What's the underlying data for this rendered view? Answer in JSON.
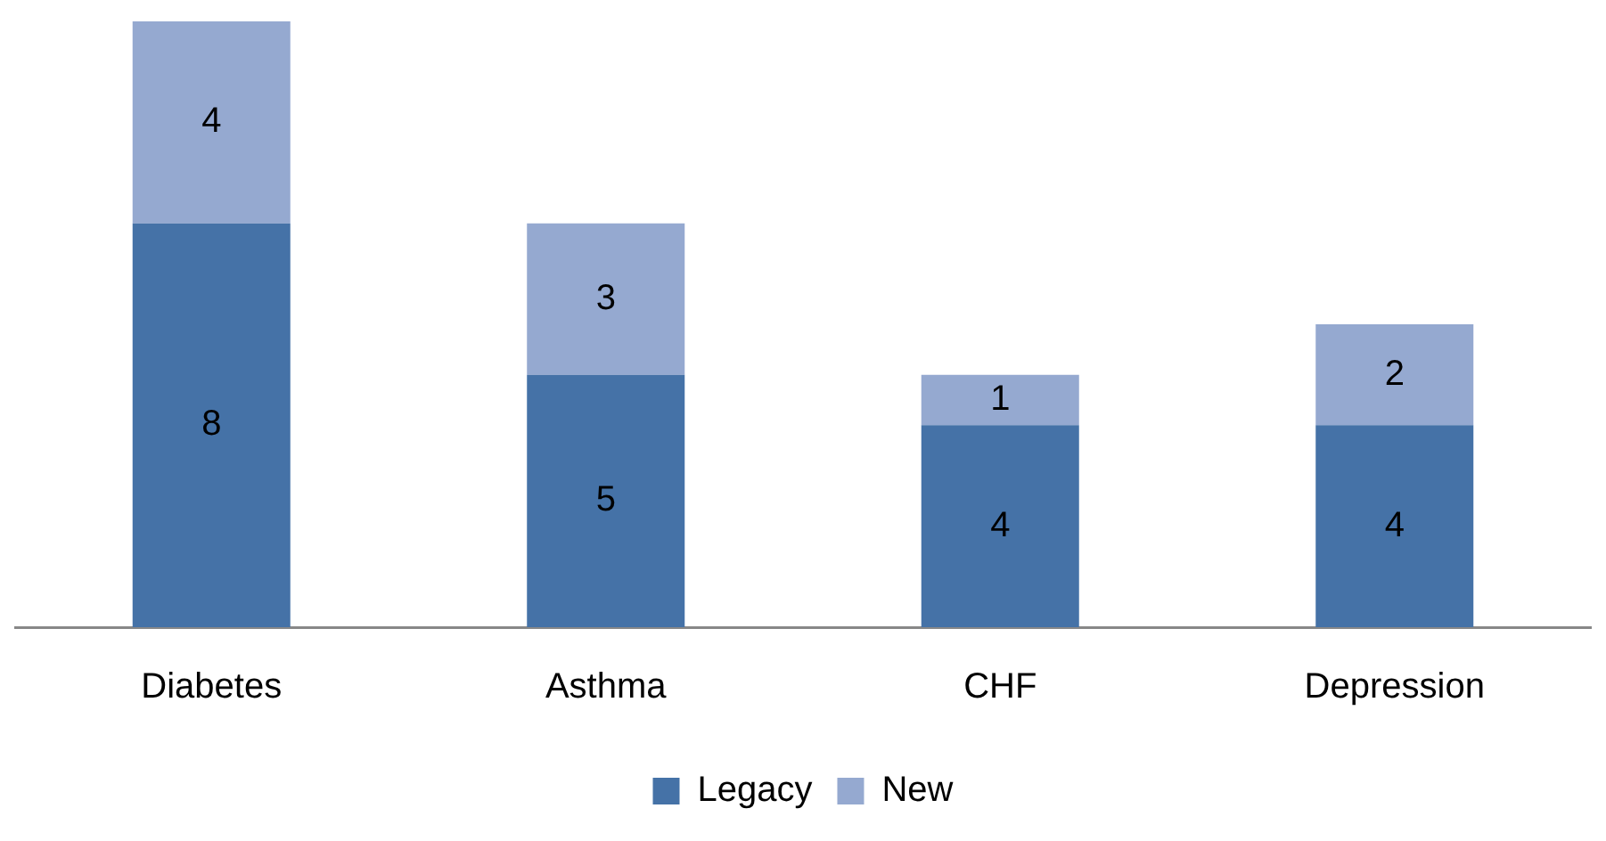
{
  "chart_data": {
    "type": "bar",
    "stacked": true,
    "categories": [
      "Diabetes",
      "Asthma",
      "CHF",
      "Depression"
    ],
    "series": [
      {
        "name": "Legacy",
        "color": "#4572a7",
        "values": [
          8,
          5,
          4,
          4
        ]
      },
      {
        "name": "New",
        "color": "#95a9d0",
        "values": [
          4,
          3,
          1,
          2
        ]
      }
    ],
    "data_labels": true,
    "legend": "bottom",
    "grid": false,
    "tick_labels": "x"
  }
}
